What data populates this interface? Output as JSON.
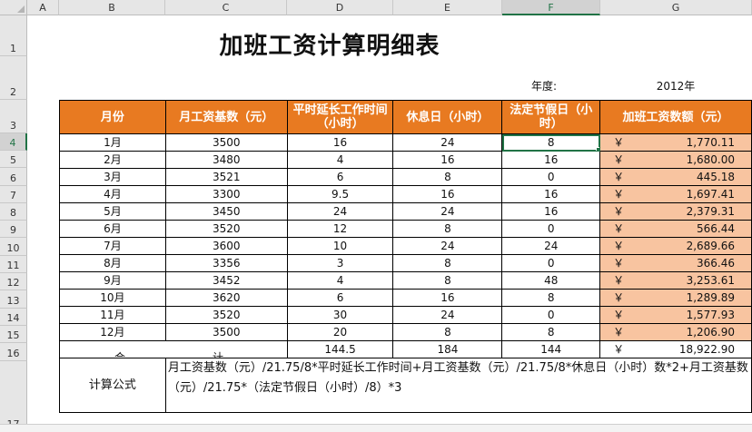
{
  "columns": [
    "A",
    "B",
    "C",
    "D",
    "E",
    "F",
    "G"
  ],
  "rows": [
    "1",
    "2",
    "3",
    "4",
    "5",
    "6",
    "7",
    "8",
    "9",
    "10",
    "11",
    "12",
    "13",
    "14",
    "15",
    "16",
    "17"
  ],
  "title": "加班工资计算明细表",
  "year_label": "年度:",
  "year_value": "2012年",
  "headers": {
    "month": "月份",
    "base": "月工资基数（元）",
    "overtime": "平时延长工作时间（小时）",
    "rest": "休息日（小时）",
    "holiday": "法定节假日（小时）",
    "amount": "加班工资数额（元）"
  },
  "currency": "￥",
  "records": [
    {
      "month": "1月",
      "base": "3500",
      "overtime": "16",
      "rest": "24",
      "holiday": "8",
      "amount": "1,770.11"
    },
    {
      "month": "2月",
      "base": "3480",
      "overtime": "4",
      "rest": "16",
      "holiday": "16",
      "amount": "1,680.00"
    },
    {
      "month": "3月",
      "base": "3521",
      "overtime": "6",
      "rest": "8",
      "holiday": "0",
      "amount": "445.18"
    },
    {
      "month": "4月",
      "base": "3300",
      "overtime": "9.5",
      "rest": "16",
      "holiday": "16",
      "amount": "1,697.41"
    },
    {
      "month": "5月",
      "base": "3450",
      "overtime": "24",
      "rest": "24",
      "holiday": "16",
      "amount": "2,379.31"
    },
    {
      "month": "6月",
      "base": "3520",
      "overtime": "12",
      "rest": "8",
      "holiday": "0",
      "amount": "566.44"
    },
    {
      "month": "7月",
      "base": "3600",
      "overtime": "10",
      "rest": "24",
      "holiday": "24",
      "amount": "2,689.66"
    },
    {
      "month": "8月",
      "base": "3356",
      "overtime": "3",
      "rest": "8",
      "holiday": "0",
      "amount": "366.46"
    },
    {
      "month": "9月",
      "base": "3452",
      "overtime": "4",
      "rest": "8",
      "holiday": "48",
      "amount": "3,253.61"
    },
    {
      "month": "10月",
      "base": "3620",
      "overtime": "6",
      "rest": "16",
      "holiday": "8",
      "amount": "1,289.89"
    },
    {
      "month": "11月",
      "base": "3520",
      "overtime": "30",
      "rest": "24",
      "holiday": "0",
      "amount": "1,577.93"
    },
    {
      "month": "12月",
      "base": "3500",
      "overtime": "20",
      "rest": "8",
      "holiday": "8",
      "amount": "1,206.90"
    }
  ],
  "total": {
    "label_a": "合",
    "label_b": "计",
    "overtime": "144.5",
    "rest": "184",
    "holiday": "144",
    "amount": "18,922.90"
  },
  "formula_label": "计算公式",
  "formula_text": "月工资基数（元）/21.75/8*平时延长工作时间+月工资基数（元）/21.75/8*休息日（小时）数*2+月工资基数（元）/21.75*（法定节假日（小时）/8）*3"
}
